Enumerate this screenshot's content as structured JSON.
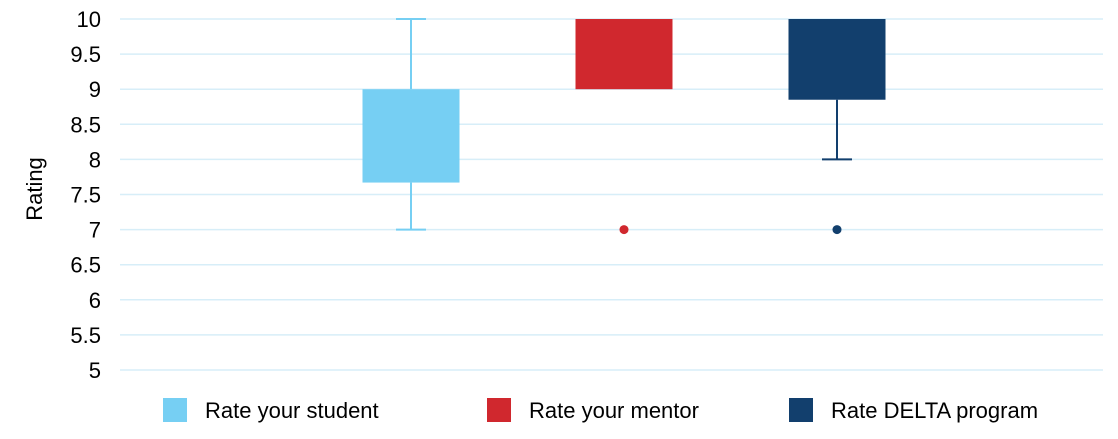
{
  "chart_data": {
    "type": "box",
    "ylabel": "Rating",
    "ylim": [
      5,
      10
    ],
    "ytick_step": 0.5,
    "yticks": [
      "10",
      "9.5",
      "9",
      "8.5",
      "8",
      "7.5",
      "7",
      "6.5",
      "6",
      "5.5",
      "5"
    ],
    "grid": true,
    "legend": "bottom",
    "series": [
      {
        "name": "Rate your student",
        "color": "#76CFF3",
        "whisker_low": 7,
        "q1": 7.67,
        "median": 9,
        "q3": 9,
        "whisker_high": 10,
        "outliers": []
      },
      {
        "name": "Rate your mentor",
        "color": "#D0282E",
        "whisker_low": 9,
        "q1": 9,
        "median": 10,
        "q3": 10,
        "whisker_high": 10,
        "outliers": [
          7
        ]
      },
      {
        "name": "Rate DELTA program",
        "color": "#123F6D",
        "whisker_low": 8,
        "q1": 8.85,
        "median": 10,
        "q3": 10,
        "whisker_high": 10,
        "outliers": [
          7
        ]
      }
    ]
  }
}
